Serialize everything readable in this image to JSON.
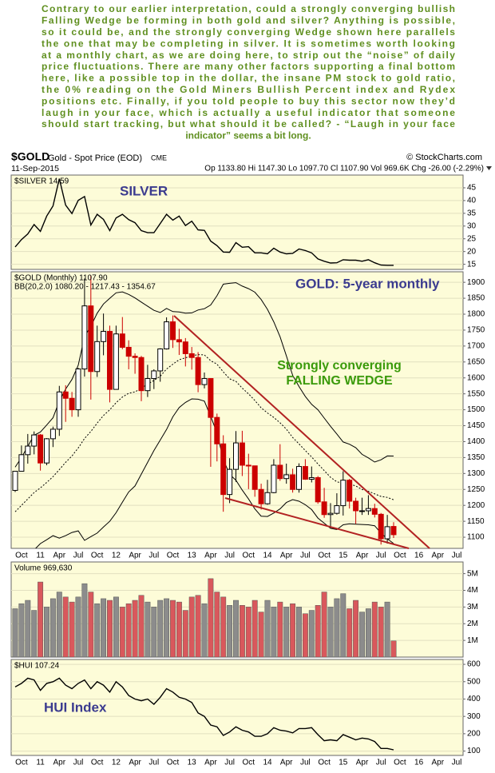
{
  "commentary": {
    "lines": [
      "Contrary to our earlier interpretation, could a strongly converging bullish",
      "Falling Wedge be forming in both gold and silver? Anything is possible,",
      "so it could be, and the strongly converging Wedge shown here parallels",
      "the one that may be completing in silver. It is sometimes worth looking",
      "at a monthly chart, as we are doing here, to strip out the “noise” of daily",
      "price fluctuations. There are many other factors supporting a final bottom",
      "here, like a possible top in the dollar, the insane PM stock to gold ratio,",
      "the 0%  reading on the Gold Miners Bullish Percent index and Rydex",
      "positions etc.  Finally, if you told people to buy this sector now they’d",
      "laugh in your face, which is actually a useful indicator that someone",
      "should start tracking, but what should it be called? -  “Laugh in your face",
      "indicator” seems a bit long."
    ]
  },
  "header": {
    "symbol": "$GOLD",
    "name": "Gold - Spot Price (EOD)",
    "exchange": "CME",
    "source": "© StockCharts.com",
    "date": "11-Sep-2015",
    "quote": "Op 1133.80  Hi 1147.30  Lo 1097.70  Cl 1107.90  Vol 969.6K  Chg -26.00 (-2.29%)"
  },
  "chart_data": [
    {
      "type": "line",
      "annotation": "SILVER",
      "series": [
        {
          "name": "$SILVER 14.59",
          "color": "#000000",
          "values": [
            21.8,
            24.7,
            26.9,
            30.6,
            27.9,
            33.9,
            37.9,
            48.6,
            38.2,
            34.9,
            40.1,
            41.6,
            30.4,
            34.6,
            32.6,
            28.2,
            33.2,
            34.6,
            32.5,
            31.3,
            28.2,
            27.4,
            27.4,
            31.0,
            34.6,
            32.3,
            33.9,
            30.2,
            31.9,
            28.5,
            28.3,
            24.1,
            22.3,
            19.8,
            19.7,
            23.5,
            21.7,
            21.9,
            19.5,
            19.5,
            19.1,
            21.3,
            19.8,
            19.1,
            19.3,
            21.0,
            20.4,
            19.5,
            17.1,
            16.2,
            15.5,
            15.6,
            16.8,
            16.6,
            16.6,
            16.2,
            16.8,
            15.6,
            14.7,
            14.6,
            14.59,
            null,
            null,
            null,
            null,
            null,
            null,
            null,
            null,
            null,
            null,
            null
          ]
        }
      ],
      "ylim": [
        13,
        50
      ],
      "yticks": [
        15,
        20,
        25,
        30,
        35,
        40,
        45
      ],
      "grid": true
    },
    {
      "type": "candlestick",
      "legend": "$GOLD (Monthly) 1107.90",
      "indicator": "BB(20,2.0) 1080.20 - 1217.43 - 1354.67",
      "annotations": [
        "GOLD: 5-year monthly",
        "Strongly converging",
        "FALLING WEDGE"
      ],
      "categories": [
        null,
        "Oct",
        null,
        null,
        "11",
        null,
        null,
        "Apr",
        null,
        null,
        "Jul",
        null,
        null,
        "Oct",
        null,
        null,
        "12",
        null,
        null,
        "Apr",
        null,
        null,
        "Jul",
        null,
        null,
        "Oct",
        null,
        null,
        "13",
        null,
        null,
        "Apr",
        null,
        null,
        "Jul",
        null,
        null,
        "Oct",
        null,
        null,
        "14",
        null,
        null,
        "Apr",
        null,
        null,
        "Jul",
        null,
        null,
        "Oct",
        null,
        null,
        "15",
        null,
        null,
        "Apr",
        null,
        null,
        "Jul",
        null,
        null,
        "Oct",
        null,
        null,
        "16",
        null,
        null,
        "Apr",
        null,
        null,
        "Jul",
        null
      ],
      "open": [
        1247,
        1307,
        1359,
        1386,
        1421,
        1333,
        1409,
        1439,
        1556,
        1536,
        1500,
        1628,
        1826,
        1620,
        1714,
        1746,
        1564,
        1738,
        1696,
        1668,
        1664,
        1560,
        1598,
        1622,
        1691,
        1776,
        1720,
        1713,
        1676,
        1664,
        1579,
        1598,
        1476,
        1393,
        1234,
        1313,
        1396,
        1326,
        1324,
        1250,
        1205,
        1240,
        1326,
        1284,
        1296,
        1250,
        1322,
        1282,
        1287,
        1211,
        1171,
        1175,
        1199,
        1279,
        1213,
        1183,
        1183,
        1190,
        1172,
        1095,
        1133.8,
        null,
        null,
        null,
        null,
        null,
        null,
        null,
        null,
        null,
        null,
        null
      ],
      "high": [
        1307,
        1388,
        1424,
        1432,
        1424,
        1411,
        1447,
        1575,
        1577,
        1556,
        1632,
        1912,
        1921,
        1764,
        1802,
        1764,
        1764,
        1791,
        1718,
        1677,
        1669,
        1641,
        1627,
        1693,
        1790,
        1796,
        1754,
        1725,
        1697,
        1681,
        1617,
        1598,
        1488,
        1420,
        1348,
        1433,
        1434,
        1362,
        1324,
        1268,
        1280,
        1345,
        1392,
        1331,
        1315,
        1332,
        1345,
        1322,
        1292,
        1255,
        1207,
        1238,
        1307,
        1283,
        1224,
        1224,
        1232,
        1205,
        1176,
        1170,
        1147.3,
        null,
        null,
        null,
        null,
        null,
        null,
        null,
        null,
        null,
        null,
        null
      ],
      "low": [
        1242,
        1306,
        1331,
        1360,
        1309,
        1326,
        1383,
        1418,
        1462,
        1478,
        1478,
        1604,
        1532,
        1603,
        1671,
        1523,
        1563,
        1690,
        1627,
        1613,
        1527,
        1540,
        1565,
        1588,
        1689,
        1694,
        1672,
        1636,
        1626,
        1555,
        1567,
        1321,
        1338,
        1180,
        1207,
        1274,
        1292,
        1251,
        1227,
        1187,
        1202,
        1238,
        1277,
        1268,
        1240,
        1240,
        1280,
        1272,
        1205,
        1161,
        1132,
        1171,
        1168,
        1190,
        1142,
        1170,
        1170,
        1162,
        1077,
        1080,
        1097.7,
        null,
        null,
        null,
        null,
        null,
        null,
        null,
        null,
        null,
        null,
        null
      ],
      "close": [
        1307,
        1359,
        1386,
        1421,
        1333,
        1409,
        1439,
        1556,
        1536,
        1500,
        1628,
        1826,
        1620,
        1714,
        1746,
        1564,
        1738,
        1696,
        1668,
        1664,
        1560,
        1598,
        1622,
        1691,
        1776,
        1720,
        1713,
        1676,
        1664,
        1579,
        1598,
        1476,
        1393,
        1234,
        1313,
        1396,
        1326,
        1324,
        1250,
        1205,
        1240,
        1326,
        1284,
        1296,
        1250,
        1322,
        1282,
        1287,
        1211,
        1171,
        1175,
        1199,
        1279,
        1213,
        1183,
        1183,
        1190,
        1172,
        1095,
        1133,
        1107.9,
        null,
        null,
        null,
        null,
        null,
        null,
        null,
        null,
        null,
        null,
        null
      ],
      "bb_upper": [
        1320,
        1350,
        1385,
        1420,
        1430,
        1452,
        1475,
        1527,
        1565,
        1595,
        1640,
        1730,
        1762,
        1803,
        1832,
        1850,
        1867,
        1870,
        1862,
        1851,
        1838,
        1825,
        1812,
        1805,
        1818,
        1808,
        1807,
        1803,
        1804,
        1813,
        1817,
        1829,
        1858,
        1894,
        1897,
        1899,
        1888,
        1880,
        1869,
        1846,
        1815,
        1776,
        1729,
        1669,
        1608,
        1573,
        1542,
        1517,
        1500,
        1474,
        1448,
        1424,
        1399,
        1392,
        1381,
        1360,
        1349,
        1336,
        1343,
        1355,
        1354.67,
        null,
        null,
        null,
        null,
        null,
        null,
        null,
        null,
        null,
        null,
        null
      ],
      "bb_middle": [
        1180,
        1200,
        1220,
        1240,
        1255,
        1272,
        1290,
        1312,
        1335,
        1355,
        1380,
        1410,
        1432,
        1458,
        1482,
        1500,
        1522,
        1540,
        1552,
        1556,
        1568,
        1580,
        1592,
        1605,
        1628,
        1643,
        1657,
        1663,
        1669,
        1673,
        1672,
        1654,
        1643,
        1619,
        1597,
        1589,
        1568,
        1550,
        1529,
        1506,
        1490,
        1476,
        1459,
        1439,
        1413,
        1393,
        1372,
        1352,
        1330,
        1309,
        1288,
        1274,
        1269,
        1267,
        1261,
        1250,
        1244,
        1236,
        1228,
        1225,
        1217.43,
        null,
        null,
        null,
        null,
        null,
        null,
        null,
        null,
        null,
        null,
        null
      ],
      "bb_lower": [
        1040,
        1050,
        1055,
        1060,
        1080,
        1092,
        1105,
        1097,
        1105,
        1115,
        1120,
        1090,
        1102,
        1113,
        1132,
        1150,
        1177,
        1210,
        1242,
        1261,
        1298,
        1335,
        1372,
        1405,
        1438,
        1478,
        1507,
        1523,
        1534,
        1533,
        1527,
        1479,
        1428,
        1344,
        1297,
        1279,
        1248,
        1220,
        1189,
        1166,
        1165,
        1176,
        1189,
        1209,
        1218,
        1213,
        1202,
        1187,
        1160,
        1144,
        1128,
        1124,
        1139,
        1142,
        1141,
        1140,
        1139,
        1136,
        1113,
        1095,
        1080.2,
        null,
        null,
        null,
        null,
        null,
        null,
        null,
        null,
        null,
        null,
        null
      ],
      "up_color": "#000000",
      "down_color": "#cc0000",
      "band_color": "#000000",
      "ylim": [
        1065,
        1933
      ],
      "yticks": [
        1100,
        1150,
        1200,
        1250,
        1300,
        1350,
        1400,
        1450,
        1500,
        1550,
        1600,
        1650,
        1700,
        1750,
        1800,
        1850,
        1900
      ],
      "grid": true
    },
    {
      "type": "bar",
      "series": [
        {
          "name": "Volume 969,630",
          "values": [
            2900000,
            3200000,
            3400000,
            2800000,
            4500000,
            3000000,
            3500000,
            3900000,
            3600000,
            3300000,
            3600000,
            4400000,
            3900000,
            3200000,
            3500000,
            3400000,
            3600000,
            3000000,
            3200000,
            3400000,
            3700000,
            3300000,
            3000000,
            3400000,
            3500000,
            3400000,
            3300000,
            2800000,
            3600000,
            3700000,
            3200000,
            4700000,
            3900000,
            3600000,
            3100000,
            3400000,
            3100000,
            3000000,
            3400000,
            2700000,
            3400000,
            3000000,
            3300000,
            3000000,
            3200000,
            3000000,
            2600000,
            2800000,
            3100000,
            3900000,
            3000000,
            3500000,
            3800000,
            2900000,
            3400000,
            2700000,
            2900000,
            3300000,
            3000000,
            3300000,
            969630,
            null,
            null,
            null,
            null,
            null,
            null,
            null,
            null,
            null,
            null,
            null
          ]
        }
      ],
      "up_color": "#8c8c8c",
      "down_color": "#d9585c",
      "ylim": [
        0,
        5700000
      ],
      "yticks": [
        {
          "value": 1000000,
          "label": "1M"
        },
        {
          "value": 2000000,
          "label": "2M"
        },
        {
          "value": 3000000,
          "label": "3M"
        },
        {
          "value": 4000000,
          "label": "4M"
        },
        {
          "value": 5000000,
          "label": "5M"
        }
      ],
      "grid": true
    },
    {
      "type": "line",
      "annotation": "HUI Index",
      "categories": [
        null,
        "Oct",
        null,
        null,
        "11",
        null,
        null,
        "Apr",
        null,
        null,
        "Jul",
        null,
        null,
        "Oct",
        null,
        null,
        "12",
        null,
        null,
        "Apr",
        null,
        null,
        "Jul",
        null,
        null,
        "Oct",
        null,
        null,
        "13",
        null,
        null,
        "Apr",
        null,
        null,
        "Jul",
        null,
        null,
        "Oct",
        null,
        null,
        "14",
        null,
        null,
        "Apr",
        null,
        null,
        "Jul",
        null,
        null,
        "Oct",
        null,
        null,
        "15",
        null,
        null,
        "Apr",
        null,
        null,
        "Jul",
        null,
        null,
        "Oct",
        null,
        null,
        "16",
        null,
        null,
        "Apr",
        null,
        null,
        "Jul",
        null
      ],
      "series": [
        {
          "name": "$HUI 107.24",
          "color": "#000000",
          "values": [
            470,
            490,
            520,
            510,
            450,
            490,
            500,
            520,
            480,
            460,
            490,
            510,
            460,
            500,
            480,
            440,
            500,
            470,
            420,
            400,
            390,
            400,
            370,
            410,
            460,
            440,
            410,
            400,
            380,
            320,
            300,
            250,
            240,
            190,
            210,
            240,
            220,
            210,
            185,
            185,
            200,
            235,
            220,
            215,
            205,
            230,
            230,
            235,
            195,
            160,
            165,
            160,
            195,
            180,
            165,
            175,
            170,
            155,
            115,
            115,
            107.24,
            null,
            null,
            null,
            null,
            null,
            null,
            null,
            null,
            null,
            null,
            null
          ]
        }
      ],
      "ylim": [
        75,
        628
      ],
      "yticks": [
        100,
        200,
        300,
        400,
        500,
        600
      ],
      "grid": true
    }
  ]
}
